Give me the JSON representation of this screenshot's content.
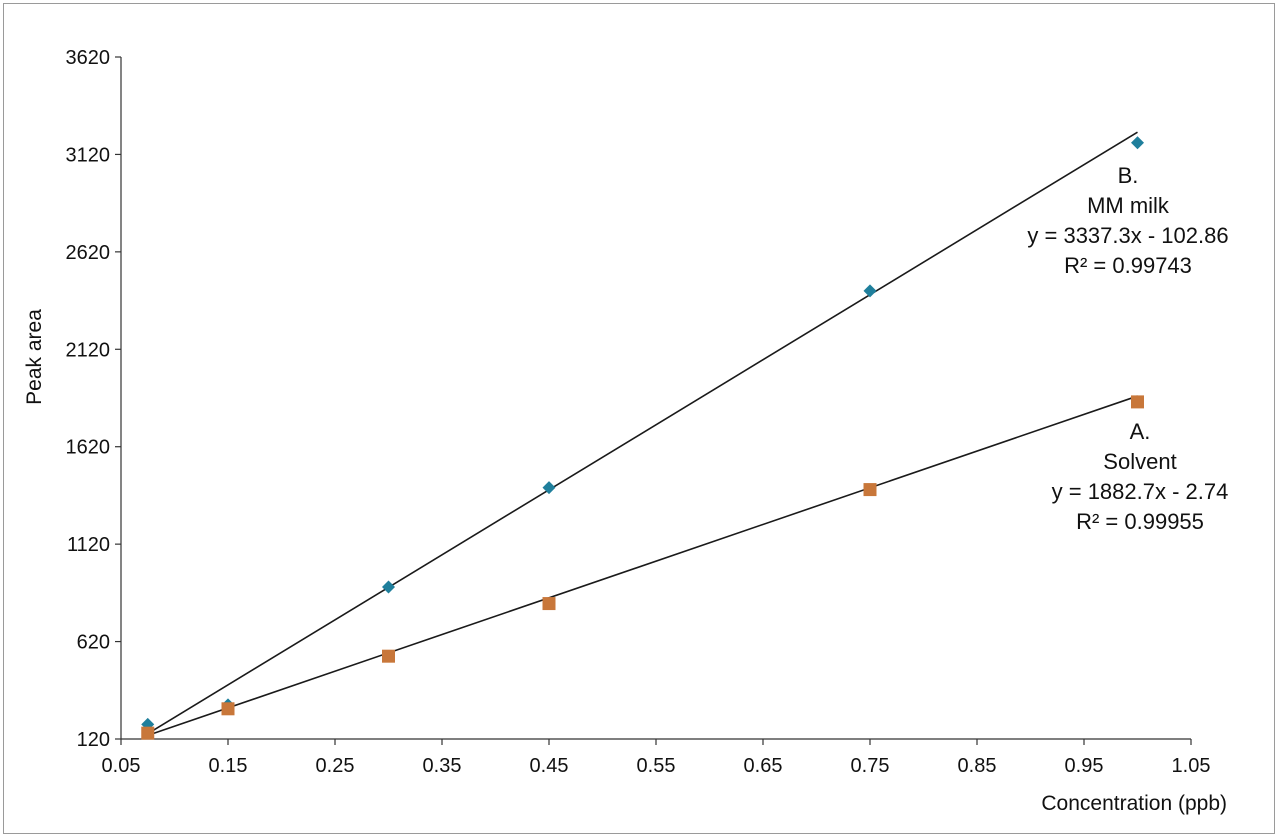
{
  "chart_data": {
    "type": "scatter",
    "title": "",
    "xlabel": "Concentration (ppb)",
    "ylabel": "Peak area",
    "xlim": [
      0.05,
      1.05
    ],
    "ylim": [
      120,
      3620
    ],
    "xticks": [
      "0.05",
      "0.15",
      "0.25",
      "0.35",
      "0.45",
      "0.55",
      "0.65",
      "0.75",
      "0.85",
      "0.95",
      "1.05"
    ],
    "yticks": [
      "120",
      "620",
      "1120",
      "1620",
      "2120",
      "2620",
      "3120",
      "3620"
    ],
    "grid": false,
    "legend": "none",
    "series": [
      {
        "name": "MM milk",
        "marker": "diamond",
        "color": "#1f7f9c",
        "points": [
          {
            "x": 0.075,
            "y": 195
          },
          {
            "x": 0.15,
            "y": 295
          },
          {
            "x": 0.3,
            "y": 900
          },
          {
            "x": 0.45,
            "y": 1410
          },
          {
            "x": 0.75,
            "y": 2420
          },
          {
            "x": 1.0,
            "y": 3180
          }
        ],
        "trendline": {
          "slope": 3337.3,
          "intercept": -102.86,
          "x_range": [
            0.075,
            1.0
          ]
        },
        "annotation": [
          "B.",
          "MM milk",
          "y = 3337.3x - 102.86",
          "R² = 0.99743"
        ]
      },
      {
        "name": "Solvent",
        "marker": "square",
        "color": "#c8773a",
        "points": [
          {
            "x": 0.075,
            "y": 150
          },
          {
            "x": 0.15,
            "y": 275
          },
          {
            "x": 0.3,
            "y": 545
          },
          {
            "x": 0.45,
            "y": 815
          },
          {
            "x": 0.75,
            "y": 1400
          },
          {
            "x": 1.0,
            "y": 1850
          }
        ],
        "trendline": {
          "slope": 1882.7,
          "intercept": -2.74,
          "x_range": [
            0.075,
            1.0
          ]
        },
        "annotation": [
          "A.",
          "Solvent",
          "y = 1882.7x - 2.74",
          "R² = 0.99955"
        ]
      }
    ]
  }
}
